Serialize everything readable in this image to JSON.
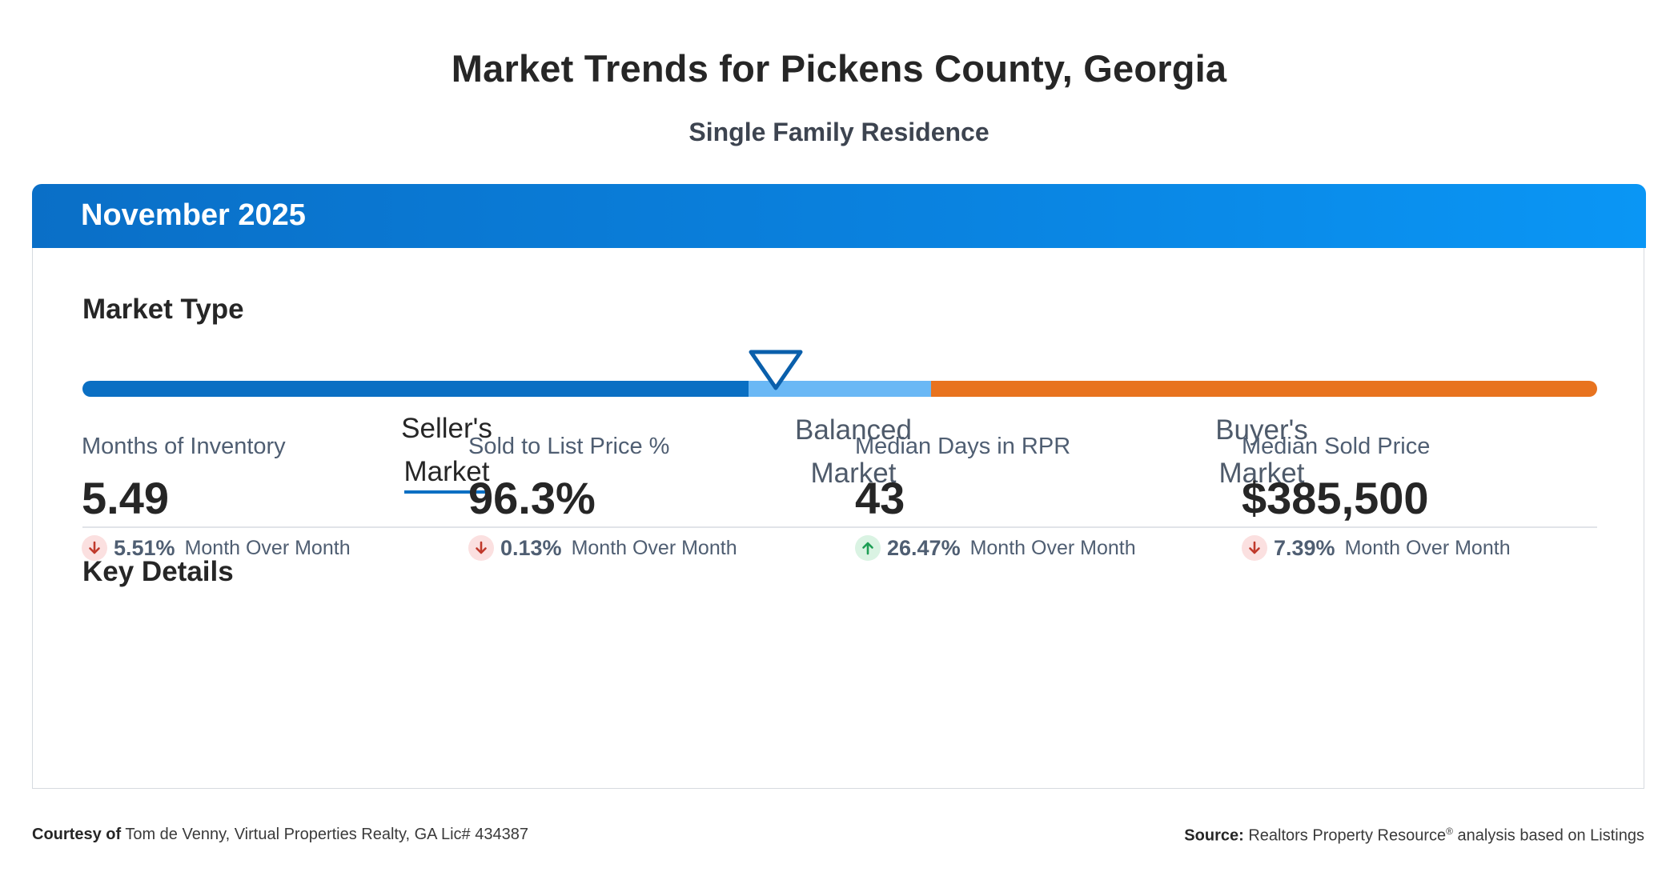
{
  "header": {
    "title": "Market Trends for Pickens County, Georgia",
    "subtitle": "Single Family Residence"
  },
  "card": {
    "period": "November 2025",
    "accent_color": "#0a82df"
  },
  "market_type": {
    "title": "Market Type",
    "indicator_position_percent": 45.9,
    "segments": [
      {
        "line1": "Seller's",
        "line2": "Market",
        "color": "#0a6fc3",
        "active": true
      },
      {
        "line1": "Balanced",
        "line2": "Market",
        "color": "#6ab8f5",
        "active": false
      },
      {
        "line1": "Buyer's",
        "line2": "Market",
        "color": "#e8731f",
        "active": false
      }
    ]
  },
  "key_details": {
    "title": "Key Details",
    "metrics": [
      {
        "label": "Months of Inventory",
        "value": "5.49",
        "change": "5.51%",
        "direction": "down",
        "change_label": "Month Over Month"
      },
      {
        "label": "Sold to List Price %",
        "value": "96.3%",
        "change": "0.13%",
        "direction": "down",
        "change_label": "Month Over Month"
      },
      {
        "label": "Median Days in RPR",
        "value": "43",
        "change": "26.47%",
        "direction": "up",
        "change_label": "Month Over Month"
      },
      {
        "label": "Median Sold Price",
        "value": "$385,500",
        "change": "7.39%",
        "direction": "down",
        "change_label": "Month Over Month"
      }
    ]
  },
  "footer": {
    "courtesy_label": "Courtesy of",
    "courtesy_text": "Tom de Venny, Virtual Properties Realty, GA Lic# 434387",
    "source_label": "Source:",
    "source_text_1": "Realtors Property Resource",
    "source_sup": "®",
    "source_text_2": "analysis based on Listings"
  },
  "colors": {
    "down": "#c0392b",
    "up": "#1e9e55"
  }
}
